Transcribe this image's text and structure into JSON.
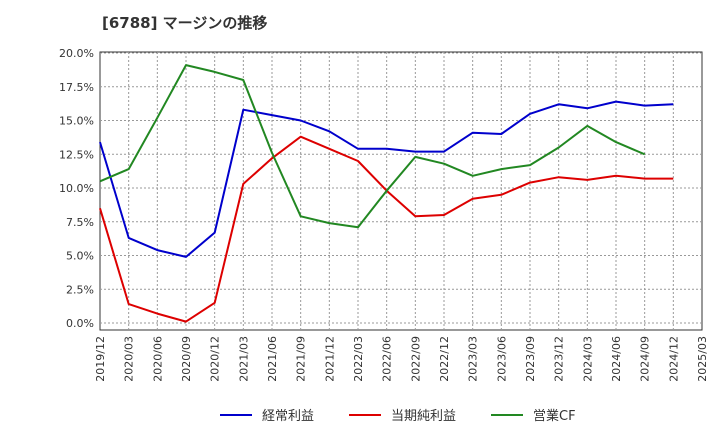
{
  "chart_data": {
    "type": "line",
    "title": "[6788]  マージンの推移",
    "xlabel": "",
    "ylabel": "",
    "ylim": [
      0,
      20
    ],
    "y_ticks": [
      "0.0%",
      "2.5%",
      "5.0%",
      "7.5%",
      "10.0%",
      "12.5%",
      "15.0%",
      "17.5%",
      "20.0%"
    ],
    "y_tick_values": [
      0,
      2.5,
      5,
      7.5,
      10,
      12.5,
      15,
      17.5,
      20
    ],
    "x": [
      "2019/12",
      "2020/03",
      "2020/06",
      "2020/09",
      "2020/12",
      "2021/03",
      "2021/06",
      "2021/09",
      "2021/12",
      "2022/03",
      "2022/06",
      "2022/09",
      "2022/12",
      "2023/03",
      "2023/06",
      "2023/09",
      "2023/12",
      "2024/03",
      "2024/06",
      "2024/09",
      "2024/12",
      "2025/03"
    ],
    "grid": true,
    "legend_position": "bottom",
    "series": [
      {
        "name": "経常利益",
        "color": "#0000cc",
        "values": [
          13.4,
          6.3,
          5.4,
          4.9,
          6.7,
          15.8,
          15.4,
          15.0,
          14.2,
          12.9,
          12.9,
          12.7,
          12.7,
          14.1,
          14.0,
          15.5,
          16.2,
          15.9,
          16.4,
          16.1,
          16.2,
          null
        ]
      },
      {
        "name": "当期純利益",
        "color": "#dd0000",
        "values": [
          8.5,
          1.4,
          0.7,
          0.1,
          1.5,
          10.3,
          12.2,
          13.8,
          12.9,
          12.0,
          9.8,
          7.9,
          8.0,
          9.2,
          9.5,
          10.4,
          10.8,
          10.6,
          10.9,
          10.7,
          10.7,
          null
        ]
      },
      {
        "name": "営業CF",
        "color": "#228822",
        "values": [
          10.5,
          11.4,
          15.2,
          19.1,
          18.6,
          18.0,
          12.6,
          7.9,
          7.4,
          7.1,
          9.8,
          12.3,
          11.8,
          10.9,
          11.4,
          11.7,
          13.0,
          14.6,
          13.4,
          12.5,
          null,
          null
        ]
      }
    ]
  },
  "colors": {
    "plot_background": "#ffffff",
    "grid": "#999999",
    "axis": "#333333"
  }
}
